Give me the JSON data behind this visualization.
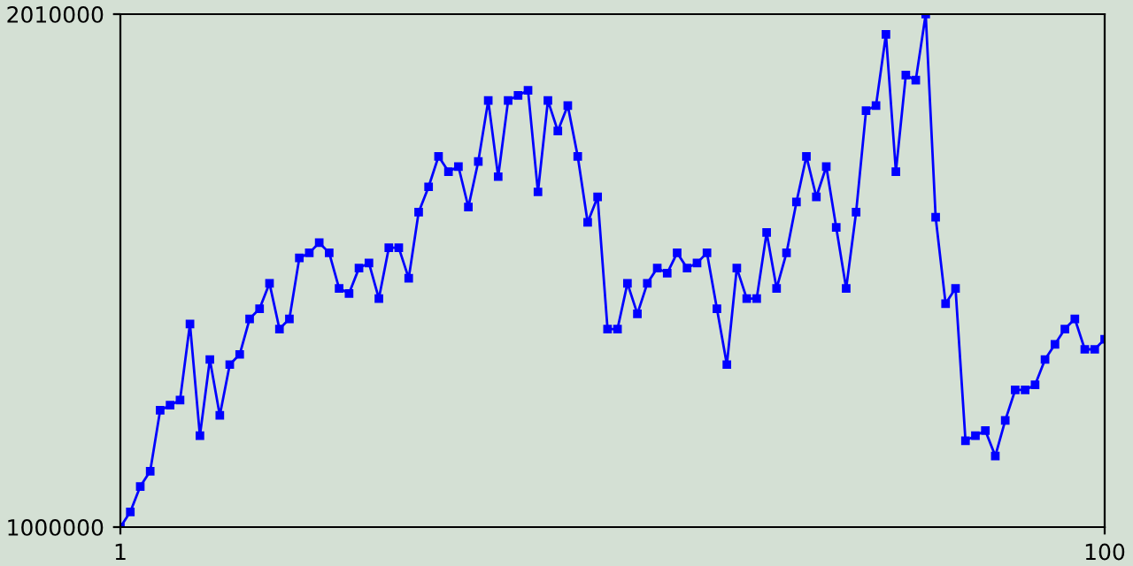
{
  "chart_data": {
    "type": "line",
    "marker": "square",
    "line_style": "solid",
    "x": [
      1,
      2,
      3,
      4,
      5,
      6,
      7,
      8,
      9,
      10,
      11,
      12,
      13,
      14,
      15,
      16,
      17,
      18,
      19,
      20,
      21,
      22,
      23,
      24,
      25,
      26,
      27,
      28,
      29,
      30,
      31,
      32,
      33,
      34,
      35,
      36,
      37,
      38,
      39,
      40,
      41,
      42,
      43,
      44,
      45,
      46,
      47,
      48,
      49,
      50,
      51,
      52,
      53,
      54,
      55,
      56,
      57,
      58,
      59,
      60,
      61,
      62,
      63,
      64,
      65,
      66,
      67,
      68,
      69,
      70,
      71,
      72,
      73,
      74,
      75,
      76,
      77,
      78,
      79,
      80,
      81,
      82,
      83,
      84,
      85,
      86,
      87,
      88,
      89,
      90,
      91,
      92,
      93,
      94,
      95,
      96,
      97,
      98,
      99,
      100
    ],
    "series": [
      {
        "color": "#0000ff",
        "values": [
          1000000,
          1030000,
          1080000,
          1110000,
          1230000,
          1240000,
          1250000,
          1400000,
          1180000,
          1330000,
          1220000,
          1320000,
          1340000,
          1410000,
          1430000,
          1480000,
          1390000,
          1410000,
          1530000,
          1540000,
          1560000,
          1540000,
          1470000,
          1460000,
          1510000,
          1520000,
          1450000,
          1550000,
          1550000,
          1490000,
          1620000,
          1670000,
          1730000,
          1700000,
          1710000,
          1630000,
          1720000,
          1840000,
          1690000,
          1840000,
          1850000,
          1860000,
          1660000,
          1840000,
          1780000,
          1830000,
          1730000,
          1600000,
          1650000,
          1390000,
          1390000,
          1480000,
          1420000,
          1480000,
          1510000,
          1500000,
          1540000,
          1510000,
          1520000,
          1540000,
          1430000,
          1320000,
          1510000,
          1450000,
          1450000,
          1580000,
          1470000,
          1540000,
          1640000,
          1730000,
          1650000,
          1710000,
          1590000,
          1470000,
          1620000,
          1820000,
          1830000,
          1970000,
          1700000,
          1890000,
          1880000,
          2010000,
          1610000,
          1440000,
          1470000,
          1170000,
          1180000,
          1190000,
          1140000,
          1210000,
          1270000,
          1270000,
          1280000,
          1330000,
          1360000,
          1390000,
          1410000,
          1350000,
          1350000,
          1370000
        ]
      }
    ],
    "xlim": [
      1,
      100
    ],
    "xticks": [
      1,
      100
    ],
    "ylim": [
      1000000,
      2010000
    ],
    "yticks": [
      1000000,
      2010000
    ]
  }
}
